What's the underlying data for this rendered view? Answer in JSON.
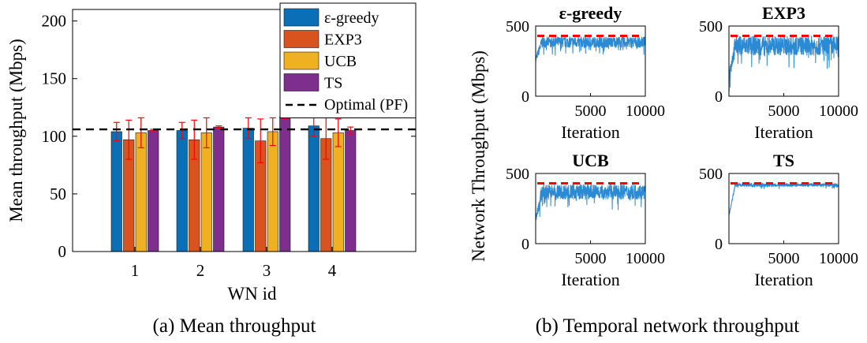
{
  "captions": {
    "a": "(a) Mean throughput",
    "b": "(b) Temporal network throughput"
  },
  "colors": {
    "egreedy": "#0b6fb8",
    "exp3": "#d9531e",
    "ucb": "#efb021",
    "ts": "#7e2f8e",
    "error_bar": "#ff0000",
    "optimal": "#000000",
    "trace": "#2a8ad4",
    "trace_optimal": "#ff0000"
  },
  "chart_data": [
    {
      "type": "bar",
      "title": "",
      "xlabel": "WN id",
      "ylabel": "Mean throughput (Mbps)",
      "ylim": [
        0,
        210
      ],
      "yticks": [
        "0",
        "50",
        "100",
        "150",
        "200"
      ],
      "categories": [
        "1",
        "2",
        "3",
        "4"
      ],
      "legend_position": "top-right",
      "series": [
        {
          "name": "ε-greedy",
          "key": "egreedy",
          "values": [
            104,
            105,
            107,
            109
          ],
          "err": [
            8,
            7,
            9,
            9
          ]
        },
        {
          "name": "EXP3",
          "key": "exp3",
          "values": [
            97,
            97,
            96,
            98
          ],
          "err": [
            17,
            17,
            19,
            18
          ]
        },
        {
          "name": "UCB",
          "key": "ucb",
          "values": [
            103,
            103,
            104,
            103
          ],
          "err": [
            13,
            13,
            12,
            12
          ]
        },
        {
          "name": "TS",
          "key": "ts",
          "values": [
            105,
            108,
            117,
            105
          ],
          "err": [
            1,
            1,
            2,
            3
          ]
        }
      ],
      "reference_line": {
        "name": "Optimal (PF)",
        "value": 106,
        "style": "dashed"
      }
    },
    {
      "type": "line",
      "ylabel": "Network Throughput (Mbps)",
      "optimal_value": 430,
      "panels": [
        {
          "title": "ε-greedy",
          "key": "egreedy",
          "xlabel": "Iteration",
          "xlim": [
            0,
            10000
          ],
          "xticks": [
            "5000",
            "10000"
          ],
          "ylim": [
            0,
            500
          ],
          "yticks": [
            "0",
            "500"
          ],
          "base": 385,
          "noise": 40,
          "start_dip": 260
        },
        {
          "title": "EXP3",
          "key": "exp3",
          "xlabel": "Iteration",
          "xlim": [
            0,
            10000
          ],
          "xticks": [
            "5000",
            "10000"
          ],
          "ylim": [
            0,
            500
          ],
          "yticks": [
            "0",
            "500"
          ],
          "base": 360,
          "noise": 70,
          "start_dip": 150
        },
        {
          "title": "UCB",
          "key": "ucb",
          "xlabel": "Iteration",
          "xlim": [
            0,
            10000
          ],
          "xticks": [
            "5000",
            "10000"
          ],
          "ylim": [
            0,
            500
          ],
          "yticks": [
            "0",
            "500"
          ],
          "base": 370,
          "noise": 55,
          "start_dip": 180
        },
        {
          "title": "TS",
          "key": "ts",
          "xlabel": "Iteration",
          "xlim": [
            0,
            10000
          ],
          "xticks": [
            "5000",
            "10000"
          ],
          "ylim": [
            0,
            500
          ],
          "yticks": [
            "0",
            "500"
          ],
          "base": 418,
          "noise": 12,
          "start_dip": 200
        }
      ]
    }
  ]
}
